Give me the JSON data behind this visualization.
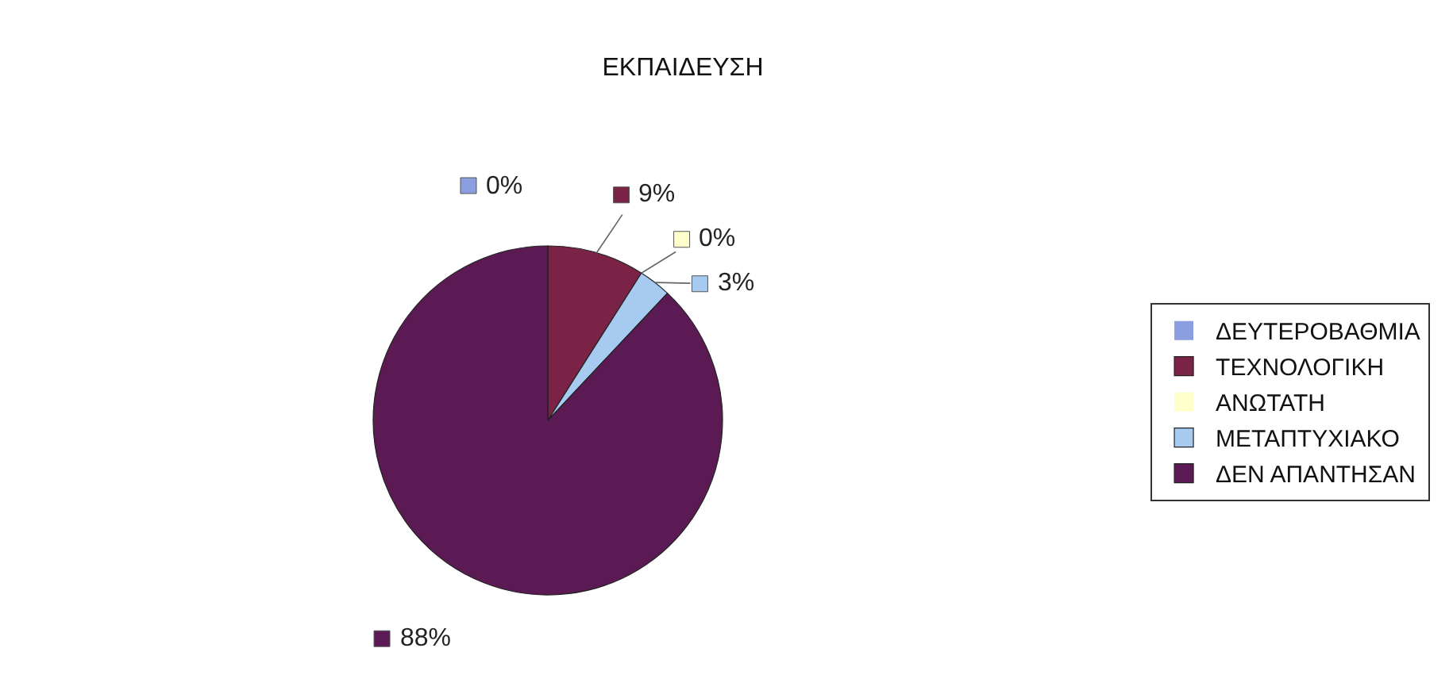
{
  "chart_data": {
    "type": "pie",
    "title": "ΕΚΠΑΙΔΕΥΣΗ",
    "categories": [
      "ΔΕΥΤΕΡΟΒΑΘΜΙΑ",
      "ΤΕΧΝΟΛΟΓΙΚΗ",
      "ΑΝΩΤΑΤΗ",
      "ΜΕΤΑΠΤΥΧΙΑΚΟ",
      "ΔΕΝ ΑΠΑΝΤΗΣΑΝ"
    ],
    "values": [
      0,
      9,
      0,
      3,
      88
    ],
    "colors": [
      "#8a9ee0",
      "#7b2346",
      "#ffffcc",
      "#a6caf0",
      "#5c1a55"
    ],
    "value_labels": [
      "0%",
      "9%",
      "0%",
      "3%",
      "88%"
    ],
    "legend": "right"
  }
}
